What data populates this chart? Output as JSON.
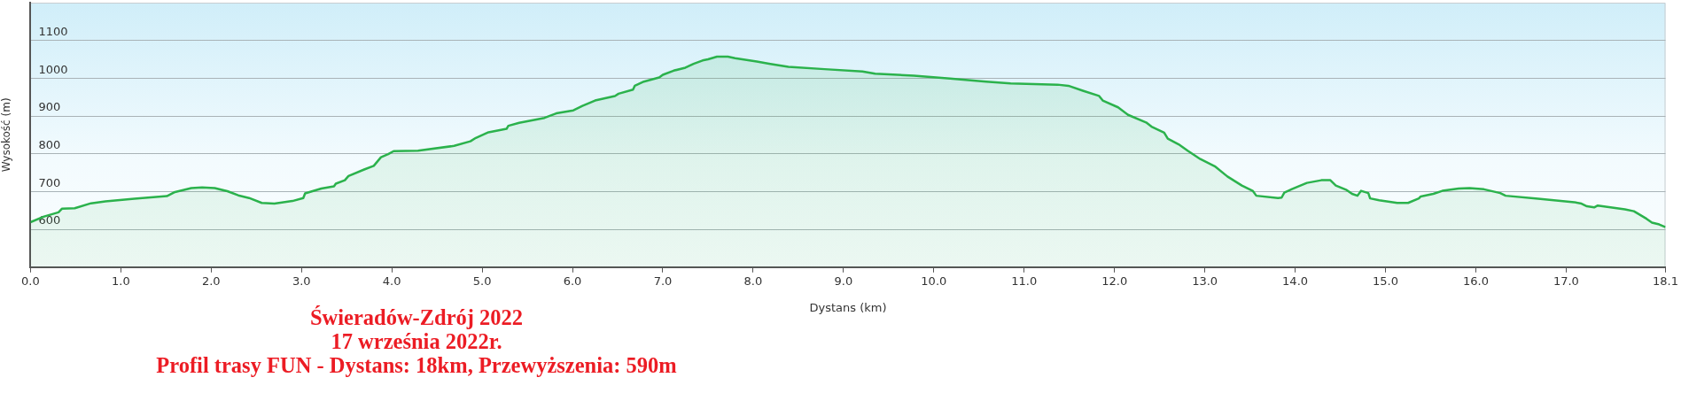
{
  "chart_data": {
    "type": "area",
    "title": "Świeradów-Zdrój 2022",
    "subtitle": "17 września 2022r.",
    "annotations": [
      "Profil trasy FUN - Dystans: 18km, Przewyższenia: 590m"
    ],
    "xlabel": "Dystans (km)",
    "ylabel": "Wysokość (m)",
    "x": [
      0,
      0.15,
      0.31,
      0.35,
      0.49,
      0.67,
      0.83,
      1.15,
      1.51,
      1.59,
      1.78,
      1.9,
      2.04,
      2.18,
      2.3,
      2.42,
      2.56,
      2.7,
      2.9,
      3.02,
      3.04,
      3.22,
      3.36,
      3.38,
      3.48,
      3.52,
      3.7,
      3.8,
      3.88,
      3.96,
      4.02,
      4.29,
      4.69,
      4.87,
      4.93,
      5.07,
      5.27,
      5.29,
      5.41,
      5.69,
      5.82,
      6.01,
      6.11,
      6.25,
      6.47,
      6.51,
      6.67,
      6.69,
      6.79,
      6.96,
      7.0,
      7.12,
      7.25,
      7.34,
      7.44,
      7.5,
      7.6,
      7.72,
      7.8,
      8.04,
      8.19,
      8.39,
      8.79,
      9.21,
      9.35,
      9.78,
      10.18,
      10.58,
      10.85,
      11.37,
      11.49,
      11.65,
      11.83,
      11.87,
      12.04,
      12.15,
      12.35,
      12.41,
      12.55,
      12.59,
      12.71,
      12.81,
      12.95,
      13.11,
      13.25,
      13.41,
      13.53,
      13.57,
      13.81,
      13.85,
      13.88,
      13.97,
      14.13,
      14.29,
      14.39,
      14.45,
      14.57,
      14.63,
      14.69,
      14.73,
      14.81,
      14.83,
      14.93,
      15.13,
      15.25,
      15.37,
      15.39,
      15.53,
      15.63,
      15.81,
      15.93,
      16.09,
      16.27,
      16.33,
      16.69,
      17.09,
      17.17,
      17.23,
      17.31,
      17.35,
      17.65,
      17.75,
      17.89,
      17.95,
      18.03,
      18.1
    ],
    "values": [
      619,
      634,
      645,
      655,
      656,
      669,
      674,
      681,
      688,
      698,
      709,
      711,
      709,
      701,
      690,
      683,
      670,
      668,
      675,
      683,
      695,
      708,
      714,
      721,
      730,
      741,
      759,
      768,
      791,
      799,
      807,
      808,
      821,
      833,
      842,
      857,
      866,
      874,
      882,
      895,
      907,
      915,
      927,
      941,
      953,
      959,
      970,
      980,
      991,
      1002,
      1009,
      1020,
      1028,
      1038,
      1047,
      1050,
      1057,
      1057,
      1053,
      1044,
      1038,
      1030,
      1024,
      1018,
      1012,
      1007,
      999,
      991,
      986,
      983,
      980,
      967,
      953,
      941,
      923,
      903,
      883,
      872,
      856,
      840,
      825,
      808,
      786,
      767,
      740,
      716,
      702,
      689,
      683,
      684,
      697,
      707,
      723,
      730,
      730,
      716,
      704,
      694,
      689,
      702,
      696,
      682,
      677,
      670,
      670,
      682,
      687,
      694,
      702,
      708,
      709,
      706,
      696,
      689,
      681,
      672,
      668,
      661,
      658,
      663,
      653,
      648,
      628,
      618,
      613,
      606
    ],
    "color": "#2bb24c",
    "xlim": [
      0,
      18.1
    ],
    "ylim": [
      500,
      1200
    ],
    "xticks": [
      {
        "value": 0,
        "label": "0.0"
      },
      {
        "value": 1,
        "label": "1.0"
      },
      {
        "value": 2,
        "label": "2.0"
      },
      {
        "value": 3,
        "label": "3.0"
      },
      {
        "value": 4,
        "label": "4.0"
      },
      {
        "value": 5,
        "label": "5.0"
      },
      {
        "value": 6,
        "label": "6.0"
      },
      {
        "value": 7,
        "label": "7.0"
      },
      {
        "value": 8,
        "label": "8.0"
      },
      {
        "value": 9,
        "label": "9.0"
      },
      {
        "value": 10,
        "label": "10.0"
      },
      {
        "value": 11,
        "label": "11.0"
      },
      {
        "value": 12,
        "label": "12.0"
      },
      {
        "value": 13,
        "label": "13.0"
      },
      {
        "value": 14,
        "label": "14.0"
      },
      {
        "value": 15,
        "label": "15.0"
      },
      {
        "value": 16,
        "label": "16.0"
      },
      {
        "value": 17,
        "label": "17.0"
      },
      {
        "value": 18.1,
        "label": "18.1"
      }
    ],
    "yticks": [
      600,
      700,
      800,
      900,
      1000,
      1100
    ],
    "grid": "y"
  }
}
